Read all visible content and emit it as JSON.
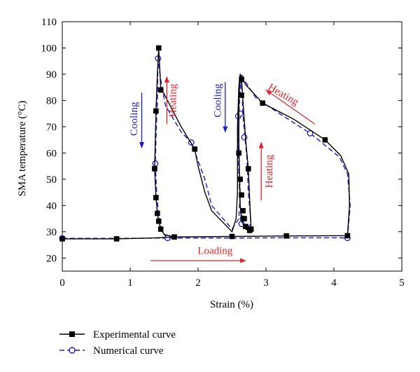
{
  "chart_data": {
    "type": "line",
    "xlabel": "Strain (%)",
    "ylabel": "SMA temperature (°C)",
    "xlim": [
      0,
      5
    ],
    "ylim": [
      15,
      110
    ],
    "x_ticks": [
      0,
      1,
      2,
      3,
      4,
      5
    ],
    "y_ticks": [
      20,
      30,
      40,
      50,
      60,
      70,
      80,
      90,
      100,
      110
    ],
    "grid": false,
    "legend_position": "bottom-left-outside",
    "series": [
      {
        "name": "Experimental curve",
        "color": "#000000",
        "line_style": "solid",
        "marker": "filled-square",
        "points": [
          [
            0.0,
            27.3
          ],
          [
            0.8,
            27.3
          ],
          [
            1.3,
            27.6
          ],
          [
            1.65,
            28.0
          ],
          [
            2.5,
            28.2
          ],
          [
            3.3,
            28.4
          ],
          [
            4.1,
            28.5
          ],
          [
            4.2,
            28.5
          ],
          [
            4.23,
            40.0
          ],
          [
            4.22,
            52.0
          ],
          [
            4.1,
            59.0
          ],
          [
            3.87,
            65.0
          ],
          [
            3.4,
            73.0
          ],
          [
            2.95,
            79.0
          ],
          [
            2.7,
            86.0
          ],
          [
            2.62,
            90.0
          ],
          [
            2.6,
            80.0
          ],
          [
            2.6,
            65.0
          ],
          [
            2.61,
            50.0
          ],
          [
            2.62,
            40.0
          ],
          [
            2.64,
            34.0
          ],
          [
            2.7,
            31.0
          ],
          [
            2.76,
            30.2
          ],
          [
            2.78,
            31.0
          ],
          [
            2.76,
            42.0
          ],
          [
            2.74,
            54.0
          ],
          [
            2.7,
            65.0
          ],
          [
            2.66,
            80.0
          ],
          [
            2.64,
            88.0
          ],
          [
            2.62,
            90.0
          ],
          [
            2.6,
            85.0
          ],
          [
            2.58,
            70.0
          ],
          [
            2.58,
            55.0
          ],
          [
            2.58,
            45.0
          ],
          [
            2.56,
            35.0
          ],
          [
            2.5,
            30.0
          ],
          [
            2.2,
            38.0
          ],
          [
            2.1,
            45.0
          ],
          [
            2.0,
            55.0
          ],
          [
            1.95,
            61.5
          ],
          [
            1.75,
            70.0
          ],
          [
            1.55,
            80.0
          ],
          [
            1.45,
            85.0
          ],
          [
            1.42,
            100.0
          ],
          [
            1.4,
            90.0
          ],
          [
            1.38,
            76.0
          ],
          [
            1.37,
            65.0
          ],
          [
            1.36,
            54.0
          ],
          [
            1.38,
            43.0
          ],
          [
            1.4,
            37.0
          ],
          [
            1.42,
            34.0
          ],
          [
            1.45,
            31.0
          ],
          [
            1.5,
            29.0
          ],
          [
            1.65,
            28.0
          ]
        ],
        "marker_points": [
          [
            0.0,
            27.3
          ],
          [
            0.8,
            27.3
          ],
          [
            1.65,
            28.0
          ],
          [
            2.5,
            28.2
          ],
          [
            3.3,
            28.4
          ],
          [
            4.2,
            28.5
          ],
          [
            1.36,
            54.0
          ],
          [
            1.38,
            43.0
          ],
          [
            1.4,
            37.0
          ],
          [
            1.42,
            34.0
          ],
          [
            1.45,
            31.0
          ],
          [
            1.38,
            76.0
          ],
          [
            1.42,
            100.0
          ],
          [
            1.45,
            84.0
          ],
          [
            1.95,
            61.5
          ],
          [
            2.6,
            60.0
          ],
          [
            2.62,
            50.0
          ],
          [
            2.64,
            44.0
          ],
          [
            2.66,
            38.0
          ],
          [
            2.68,
            35.0
          ],
          [
            2.7,
            32.0
          ],
          [
            2.76,
            30.5
          ],
          [
            2.78,
            31.0
          ],
          [
            2.74,
            54.0
          ],
          [
            2.64,
            82.0
          ],
          [
            2.64,
            88.0
          ],
          [
            2.95,
            79.0
          ],
          [
            3.87,
            65.0
          ]
        ]
      },
      {
        "name": "Numerical curve",
        "color": "#1a1acd",
        "line_style": "dashed",
        "marker": "open-circle",
        "points": [
          [
            0.0,
            27.5
          ],
          [
            0.8,
            27.5
          ],
          [
            1.55,
            27.6
          ],
          [
            2.5,
            27.6
          ],
          [
            3.3,
            27.7
          ],
          [
            4.1,
            27.7
          ],
          [
            4.2,
            27.6
          ],
          [
            4.24,
            40.0
          ],
          [
            4.2,
            52.0
          ],
          [
            4.08,
            58.5
          ],
          [
            3.65,
            67.5
          ],
          [
            3.2,
            75.0
          ],
          [
            2.85,
            81.0
          ],
          [
            2.7,
            87.0
          ],
          [
            2.64,
            90.0
          ],
          [
            2.61,
            80.0
          ],
          [
            2.59,
            66.0
          ],
          [
            2.6,
            52.0
          ],
          [
            2.62,
            40.0
          ],
          [
            2.66,
            33.0
          ],
          [
            2.72,
            31.5
          ],
          [
            2.78,
            33.0
          ],
          [
            2.74,
            45.0
          ],
          [
            2.72,
            58.0
          ],
          [
            2.69,
            66.0
          ],
          [
            2.66,
            75.0
          ],
          [
            2.64,
            87.0
          ],
          [
            2.6,
            86.0
          ],
          [
            2.59,
            74.0
          ],
          [
            2.6,
            60.0
          ],
          [
            2.62,
            45.0
          ],
          [
            2.6,
            35.0
          ],
          [
            2.5,
            31.0
          ],
          [
            2.2,
            40.0
          ],
          [
            2.1,
            50.0
          ],
          [
            1.9,
            64.0
          ],
          [
            1.75,
            68.0
          ],
          [
            1.52,
            78.0
          ],
          [
            1.45,
            88.0
          ],
          [
            1.41,
            96.0
          ],
          [
            1.4,
            80.0
          ],
          [
            1.38,
            66.0
          ],
          [
            1.37,
            56.0
          ],
          [
            1.39,
            45.0
          ],
          [
            1.42,
            36.0
          ],
          [
            1.45,
            31.0
          ],
          [
            1.5,
            29.0
          ],
          [
            1.55,
            27.6
          ]
        ],
        "marker_points": [
          [
            0.0,
            27.5
          ],
          [
            1.55,
            27.6
          ],
          [
            4.2,
            27.6
          ],
          [
            1.37,
            56.0
          ],
          [
            1.41,
            96.0
          ],
          [
            1.9,
            64.0
          ],
          [
            3.65,
            67.5
          ],
          [
            2.59,
            74.0
          ],
          [
            2.62,
            75.0
          ],
          [
            2.68,
            66.0
          ],
          [
            2.66,
            35.0
          ],
          [
            2.64,
            33.0
          ]
        ]
      }
    ],
    "annotations": [
      {
        "text": "Heating",
        "color": "#e0242a",
        "kind": "label",
        "x": 1.64,
        "y": 80,
        "rotate": -90
      },
      {
        "text": "",
        "color": "#e0242a",
        "kind": "arrow",
        "from": [
          1.54,
          71
        ],
        "to": [
          1.54,
          89
        ]
      },
      {
        "text": "Cooling",
        "color": "#1a1acd",
        "kind": "label",
        "x": 1.07,
        "y": 73,
        "rotate": -90
      },
      {
        "text": "",
        "color": "#1a1acd",
        "kind": "arrow",
        "from": [
          1.17,
          83
        ],
        "to": [
          1.17,
          62
        ]
      },
      {
        "text": "Cooling",
        "color": "#1a1acd",
        "kind": "label",
        "x": 2.3,
        "y": 80,
        "rotate": -90
      },
      {
        "text": "",
        "color": "#1a1acd",
        "kind": "arrow",
        "from": [
          2.4,
          87
        ],
        "to": [
          2.4,
          68
        ]
      },
      {
        "text": "Heating",
        "color": "#e0242a",
        "kind": "label",
        "x": 3.06,
        "y": 53,
        "rotate": -90
      },
      {
        "text": "",
        "color": "#e0242a",
        "kind": "arrow",
        "from": [
          2.93,
          42
        ],
        "to": [
          2.93,
          64
        ]
      },
      {
        "text": "Heating",
        "color": "#e0242a",
        "kind": "label",
        "x": 3.25,
        "y": 82,
        "rotate": 30
      },
      {
        "text": "",
        "color": "#e0242a",
        "kind": "arrow",
        "from": [
          3.72,
          71
        ],
        "to": [
          3.0,
          84
        ]
      },
      {
        "text": "Loading",
        "color": "#e0242a",
        "kind": "label",
        "x": 2.25,
        "y": 22.5,
        "rotate": 0
      },
      {
        "text": "",
        "color": "#e0242a",
        "kind": "arrow",
        "from": [
          1.3,
          19
        ],
        "to": [
          2.7,
          19
        ]
      }
    ]
  }
}
